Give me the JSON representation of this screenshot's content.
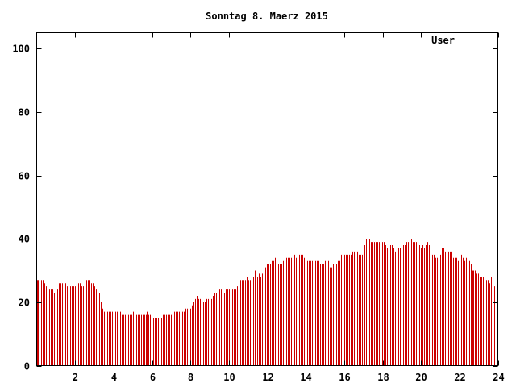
{
  "chart_data": {
    "type": "bar",
    "title": "Sonntag 8. Maerz 2015",
    "xlabel": "",
    "ylabel": "",
    "xlim": [
      0,
      24
    ],
    "ylim": [
      0,
      105
    ],
    "x_ticks": [
      "2",
      "4",
      "6",
      "8",
      "10",
      "12",
      "14",
      "16",
      "18",
      "20",
      "22",
      "24"
    ],
    "y_ticks": [
      "0",
      "20",
      "40",
      "60",
      "80",
      "100"
    ],
    "legend_position": "top-right",
    "grid": false,
    "series": [
      {
        "name": "User",
        "color": "#cc0000",
        "x_start": 0,
        "x_step": 0.0833,
        "values": [
          27,
          27,
          26,
          27,
          27,
          26,
          25,
          24,
          24,
          24,
          24,
          23,
          24,
          24,
          26,
          26,
          26,
          26,
          26,
          25,
          25,
          25,
          25,
          25,
          25,
          25,
          26,
          26,
          25,
          25,
          27,
          27,
          27,
          27,
          26,
          26,
          25,
          24,
          23,
          23,
          20,
          18,
          17,
          17,
          17,
          17,
          17,
          17,
          17,
          17,
          17,
          17,
          17,
          16,
          16,
          16,
          16,
          16,
          16,
          16,
          17,
          16,
          16,
          16,
          16,
          16,
          16,
          16,
          16,
          17,
          16,
          16,
          16,
          15,
          15,
          15,
          15,
          15,
          15,
          16,
          16,
          16,
          16,
          16,
          16,
          17,
          17,
          17,
          17,
          17,
          17,
          17,
          17,
          18,
          18,
          18,
          18,
          19,
          20,
          21,
          22,
          21,
          21,
          21,
          20,
          20,
          21,
          21,
          21,
          21,
          22,
          23,
          23,
          24,
          24,
          24,
          24,
          23,
          24,
          24,
          24,
          23,
          24,
          24,
          24,
          25,
          25,
          27,
          27,
          27,
          27,
          28,
          27,
          27,
          27,
          28,
          30,
          29,
          28,
          29,
          28,
          29,
          29,
          31,
          32,
          32,
          32,
          33,
          33,
          34,
          34,
          32,
          32,
          32,
          33,
          33,
          34,
          34,
          34,
          34,
          35,
          35,
          34,
          35,
          35,
          35,
          35,
          34,
          34,
          33,
          33,
          33,
          33,
          33,
          33,
          33,
          33,
          32,
          32,
          32,
          33,
          33,
          33,
          31,
          31,
          32,
          32,
          32,
          33,
          33,
          35,
          36,
          35,
          35,
          35,
          35,
          35,
          36,
          36,
          35,
          36,
          35,
          35,
          35,
          35,
          38,
          40,
          41,
          40,
          39,
          39,
          39,
          39,
          39,
          39,
          39,
          39,
          39,
          38,
          37,
          37,
          38,
          38,
          37,
          36,
          37,
          37,
          37,
          37,
          38,
          38,
          39,
          39,
          40,
          40,
          39,
          39,
          39,
          39,
          38,
          37,
          38,
          37,
          38,
          39,
          38,
          36,
          35,
          35,
          34,
          34,
          35,
          35,
          37,
          37,
          36,
          35,
          36,
          36,
          36,
          34,
          34,
          34,
          33,
          34,
          35,
          34,
          33,
          34,
          34,
          33,
          32,
          30,
          30,
          30,
          29,
          29,
          28,
          28,
          28,
          28,
          27,
          27,
          26,
          28,
          28,
          25
        ]
      }
    ]
  }
}
